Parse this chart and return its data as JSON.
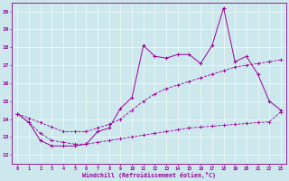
{
  "x": [
    0,
    1,
    2,
    3,
    4,
    5,
    6,
    7,
    8,
    9,
    10,
    11,
    12,
    13,
    14,
    15,
    16,
    17,
    18,
    19,
    20,
    21,
    22,
    23
  ],
  "line1": [
    14.3,
    13.8,
    12.8,
    12.5,
    12.5,
    12.5,
    12.6,
    13.3,
    13.5,
    14.6,
    15.2,
    18.1,
    17.5,
    17.4,
    17.6,
    17.6,
    17.1,
    18.1,
    20.2,
    17.2,
    17.5,
    16.5,
    15.0,
    14.5
  ],
  "line2": [
    14.3,
    14.05,
    13.8,
    13.55,
    13.3,
    13.3,
    13.3,
    13.5,
    13.7,
    14.0,
    14.5,
    15.0,
    15.4,
    15.7,
    15.9,
    16.1,
    16.3,
    16.5,
    16.7,
    16.9,
    17.0,
    17.1,
    17.2,
    17.3
  ],
  "line3": [
    14.3,
    13.8,
    13.2,
    12.8,
    12.7,
    12.6,
    12.6,
    12.7,
    12.8,
    12.9,
    13.0,
    13.1,
    13.2,
    13.3,
    13.4,
    13.5,
    13.55,
    13.6,
    13.65,
    13.7,
    13.75,
    13.8,
    13.85,
    14.4
  ],
  "color": "#990099",
  "bg_color": "#cce8ec",
  "xlabel": "Windchill (Refroidissement éolien,°C)",
  "yticks": [
    12,
    13,
    14,
    15,
    16,
    17,
    18,
    19,
    20
  ],
  "ylim": [
    11.5,
    20.5
  ],
  "xlim": [
    -0.5,
    23.5
  ],
  "grid_color": "#aacccc",
  "spine_color": "#880088"
}
